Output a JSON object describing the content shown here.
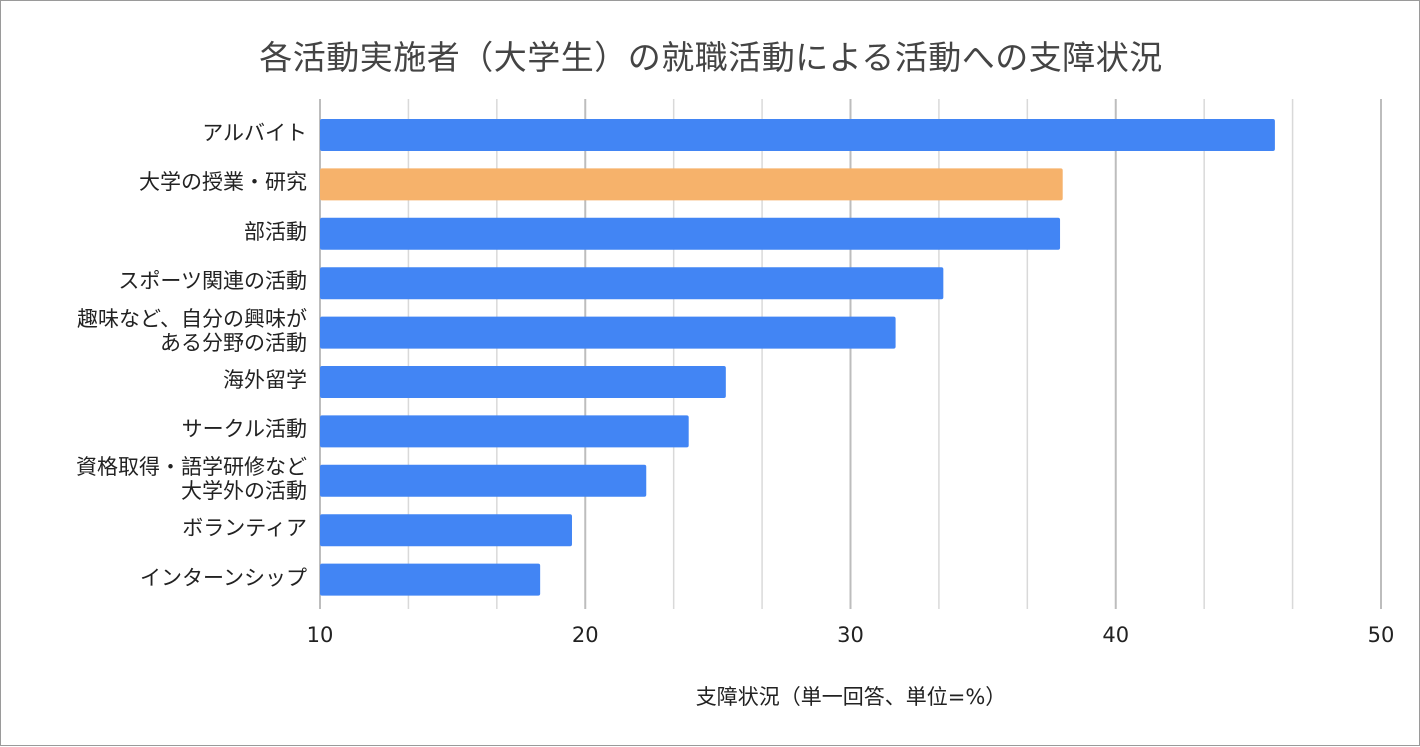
{
  "chart_data": {
    "type": "bar",
    "orientation": "horizontal",
    "title": "各活動実施者（大学生）の就職活動による活動への支障状況",
    "xlabel": "支障状況（単一回答、単位=%）",
    "ylabel": "",
    "xlim": [
      10,
      50
    ],
    "xticks": [
      10,
      20,
      30,
      40,
      50
    ],
    "grid": true,
    "legend": "none",
    "categories": [
      [
        "アルバイト"
      ],
      [
        "大学の授業・研究"
      ],
      [
        "部活動"
      ],
      [
        "スポーツ関連の活動"
      ],
      [
        "趣味など、自分の興味が",
        "ある分野の活動"
      ],
      [
        "海外留学"
      ],
      [
        "サークル活動"
      ],
      [
        "資格取得・語学研修など",
        "大学外の活動"
      ],
      [
        "ボランティア"
      ],
      [
        "インターンシップ"
      ]
    ],
    "values": [
      46.0,
      38.0,
      37.9,
      33.5,
      31.7,
      25.3,
      23.9,
      22.3,
      19.5,
      18.3
    ],
    "bar_colors": [
      "#4285f4",
      "#f6b26b",
      "#4285f4",
      "#4285f4",
      "#4285f4",
      "#4285f4",
      "#4285f4",
      "#4285f4",
      "#4285f4",
      "#4285f4"
    ],
    "gridline_color": "#d9d9d9",
    "axis_color": "#bdbdbd"
  }
}
